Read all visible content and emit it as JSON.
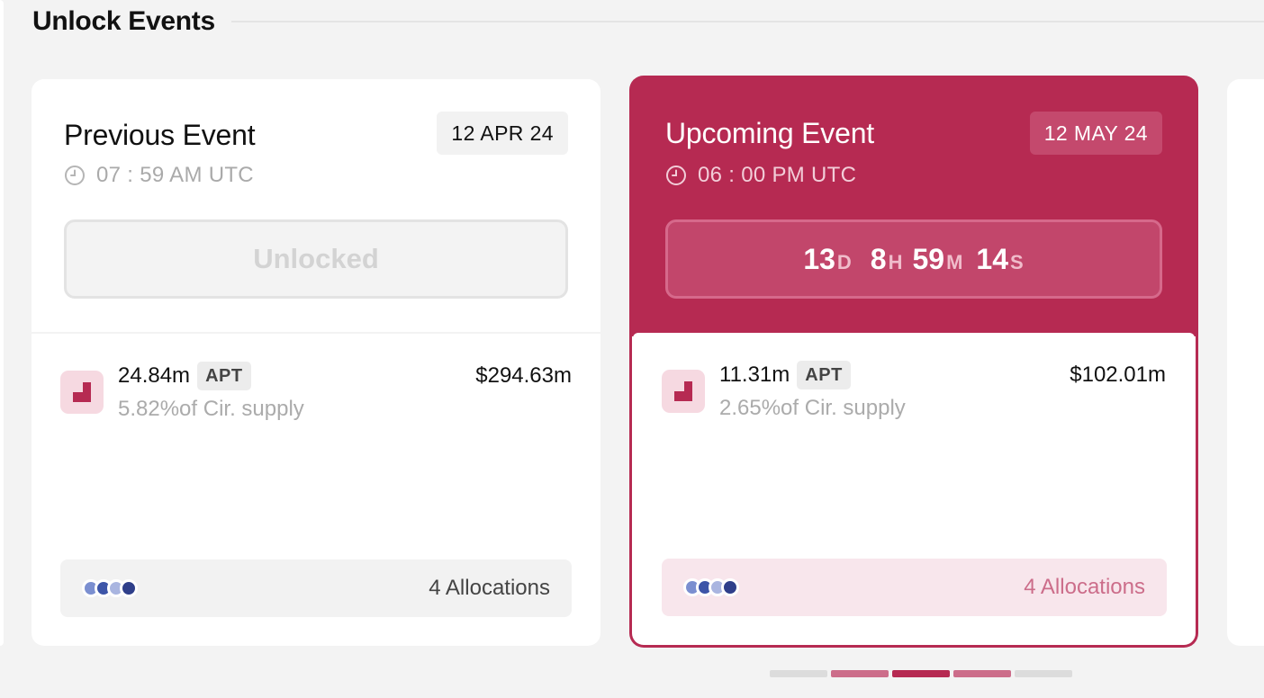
{
  "section": {
    "title": "Unlock Events"
  },
  "previous": {
    "title": "Previous Event",
    "date": "12 APR 24",
    "time": "07 : 59 AM UTC",
    "status": "Unlocked",
    "token": {
      "amount": "24.84m",
      "symbol": "APT",
      "supply": "5.82%of Cir. supply",
      "usd": "$294.63m",
      "icon": "aptos-token-icon"
    },
    "allocations": {
      "label": "4 Allocations",
      "dot_colors": [
        "#7b8fd0",
        "#3d55a8",
        "#a9b5e0",
        "#2f3f8a"
      ]
    }
  },
  "upcoming": {
    "title": "Upcoming Event",
    "date": "12 MAY 24",
    "time": "06 : 00 PM UTC",
    "countdown": [
      {
        "value": "13",
        "unit": "D"
      },
      {
        "value": "8",
        "unit": "H"
      },
      {
        "value": "59",
        "unit": "M"
      },
      {
        "value": "14",
        "unit": "S"
      }
    ],
    "token": {
      "amount": "11.31m",
      "symbol": "APT",
      "supply": "2.65%of Cir. supply",
      "usd": "$102.01m",
      "icon": "aptos-token-icon"
    },
    "allocations": {
      "label": "4 Allocations",
      "dot_colors": [
        "#7b8fd0",
        "#3d55a8",
        "#a9b5e0",
        "#2f3f8a"
      ]
    }
  },
  "pager": {
    "total": 5,
    "active_index": 2,
    "colors": {
      "inactive": "#dcdcdc",
      "near": "#cc6d8a",
      "active": "#b62a52"
    }
  },
  "theme": {
    "accent": "#b62a52",
    "accent_light": "#f6d9e1"
  }
}
